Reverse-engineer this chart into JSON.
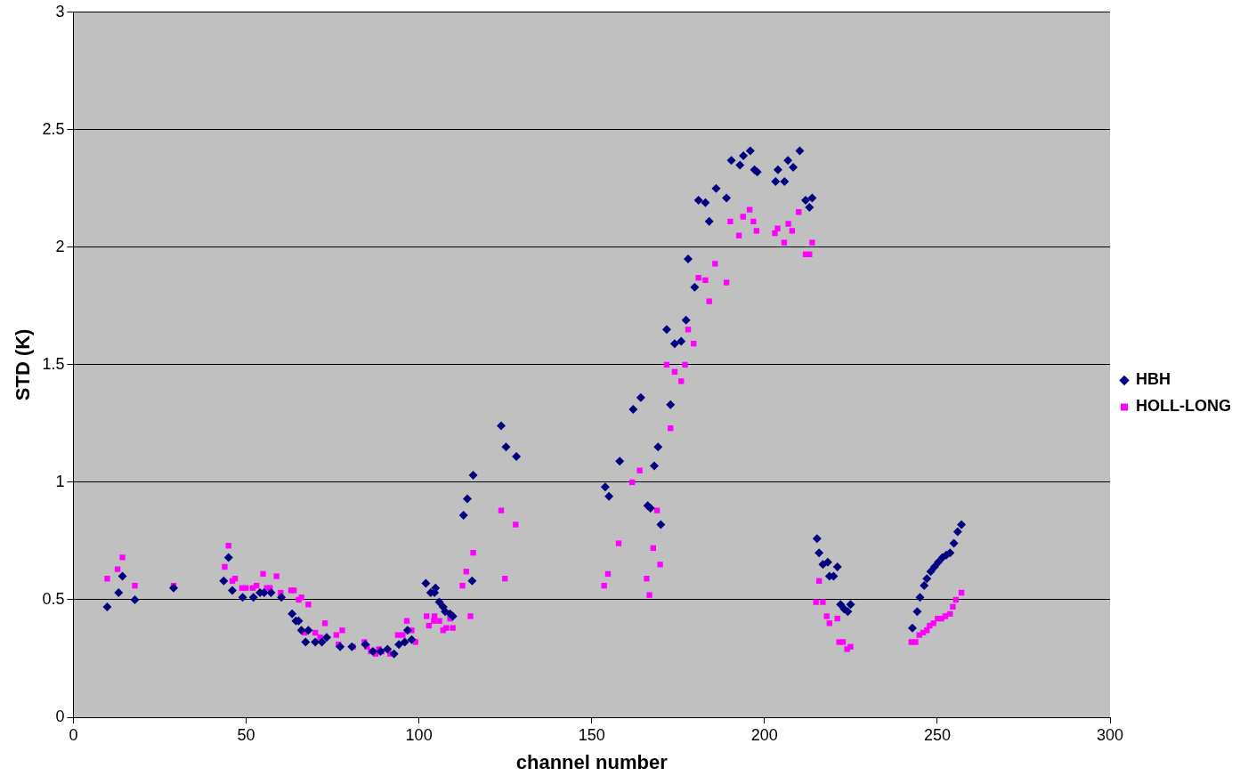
{
  "chart_data": {
    "type": "scatter",
    "xlabel": "channel number",
    "ylabel": "STD (K)",
    "xlim": [
      0,
      300
    ],
    "xticks": [
      0,
      50,
      100,
      150,
      200,
      250,
      300
    ],
    "ylim": [
      0,
      3
    ],
    "yticks": [
      0,
      0.5,
      1,
      1.5,
      2,
      2.5,
      3
    ],
    "grid": "y",
    "legend": "right",
    "series": [
      {
        "name": "HBH",
        "color": "#000080",
        "marker": "diamond",
        "x": [
          9.8,
          13.1,
          14.2,
          17.8,
          29,
          43.5,
          44.9,
          46,
          49,
          52.1,
          54,
          55.2,
          57.2,
          60.2,
          63.3,
          64.4,
          65.2,
          66,
          67.2,
          68,
          70,
          71.9,
          73.3,
          77.2,
          80.6,
          84.5,
          86.7,
          88.9,
          90.9,
          92.8,
          94.2,
          95.9,
          96.7,
          97.9,
          102,
          103.4,
          104.5,
          104.8,
          105.9,
          107,
          107.6,
          109,
          109.8,
          112.9,
          114,
          115.4,
          115.7,
          123.8,
          125.2,
          128.2,
          153.9,
          155,
          158.1,
          162,
          164.2,
          166.2,
          167,
          168.1,
          169.2,
          170,
          172.8,
          171.7,
          174,
          175.9,
          177.3,
          177.9,
          179.8,
          180.9,
          182.9,
          184,
          186,
          189,
          190.4,
          192.9,
          193.9,
          195.9,
          197.1,
          197.9,
          203.2,
          203.9,
          205.8,
          206.8,
          208.3,
          210.2,
          211.9,
          213,
          213.8,
          215.2,
          215.8,
          216.9,
          218.3,
          218.8,
          220,
          221.1,
          222,
          223.1,
          224.1,
          224.9,
          242.8,
          244.2,
          245,
          246.2,
          247,
          248.1,
          249.2,
          250.3,
          251.5,
          252.6,
          253.7,
          254.8,
          255.9,
          257
        ],
        "values": [
          0.47,
          0.53,
          0.6,
          0.5,
          0.55,
          0.58,
          0.68,
          0.54,
          0.51,
          0.51,
          0.53,
          0.53,
          0.53,
          0.51,
          0.44,
          0.41,
          0.41,
          0.37,
          0.32,
          0.37,
          0.32,
          0.32,
          0.34,
          0.3,
          0.3,
          0.31,
          0.28,
          0.28,
          0.29,
          0.27,
          0.31,
          0.32,
          0.37,
          0.33,
          0.57,
          0.53,
          0.53,
          0.55,
          0.49,
          0.47,
          0.45,
          0.44,
          0.43,
          0.86,
          0.93,
          0.58,
          1.03,
          1.24,
          1.15,
          1.11,
          0.98,
          0.94,
          1.09,
          1.31,
          1.36,
          0.9,
          0.89,
          1.07,
          1.15,
          0.82,
          1.33,
          1.65,
          1.59,
          1.6,
          1.69,
          1.95,
          1.83,
          2.2,
          2.19,
          2.11,
          2.25,
          2.21,
          2.37,
          2.35,
          2.39,
          2.41,
          2.33,
          2.32,
          2.28,
          2.33,
          2.28,
          2.37,
          2.34,
          2.41,
          2.2,
          2.17,
          2.21,
          0.76,
          0.7,
          0.65,
          0.66,
          0.6,
          0.6,
          0.64,
          0.48,
          0.46,
          0.45,
          0.48,
          0.38,
          0.45,
          0.51,
          0.56,
          0.59,
          0.62,
          0.64,
          0.66,
          0.68,
          0.69,
          0.7,
          0.74,
          0.79,
          0.82
        ]
      },
      {
        "name": "HOLL-LONG",
        "color": "#ff00ff",
        "marker": "square",
        "x": [
          9.8,
          12.8,
          14.2,
          17.8,
          29,
          43.8,
          44.9,
          46,
          46.8,
          48.8,
          49.9,
          51.9,
          53,
          54.9,
          56,
          56.9,
          58.8,
          60,
          63,
          63.8,
          65.2,
          66,
          68,
          66.9,
          70,
          71.4,
          72.8,
          76.1,
          76.7,
          77.8,
          80.9,
          84.2,
          85,
          86.1,
          87.5,
          88.4,
          89.2,
          91.7,
          93.9,
          95.3,
          96.5,
          97.9,
          99,
          102.2,
          102.9,
          104.3,
          104.5,
          105.9,
          107,
          107.9,
          109,
          109.8,
          112.6,
          113.7,
          115.7,
          114.9,
          123.8,
          128,
          124.9,
          153.6,
          154.7,
          157.8,
          161.7,
          163.9,
          165.9,
          166.7,
          167.8,
          168.9,
          169.8,
          171.7,
          172.8,
          174,
          175.9,
          177,
          177.9,
          179.5,
          180.9,
          182.9,
          184,
          185.7,
          189,
          190.1,
          192.6,
          193.8,
          195.7,
          196.8,
          197.7,
          203,
          203.8,
          205.7,
          206.9,
          208,
          209.9,
          211.9,
          213,
          213.8,
          214.9,
          215.8,
          216.9,
          218,
          218.8,
          221.1,
          221.6,
          222.7,
          223.9,
          224.9,
          242.5,
          243.7,
          244.8,
          245.9,
          247,
          247.8,
          248.9,
          250.1,
          251.2,
          252.3,
          253.7,
          254.5,
          255.4,
          257
        ],
        "values": [
          0.59,
          0.63,
          0.68,
          0.56,
          0.56,
          0.64,
          0.73,
          0.58,
          0.59,
          0.55,
          0.55,
          0.55,
          0.56,
          0.61,
          0.55,
          0.55,
          0.6,
          0.53,
          0.54,
          0.54,
          0.5,
          0.51,
          0.48,
          0.36,
          0.36,
          0.34,
          0.4,
          0.35,
          0.31,
          0.37,
          0.3,
          0.32,
          0.3,
          0.28,
          0.27,
          0.29,
          0.28,
          0.27,
          0.35,
          0.35,
          0.41,
          0.37,
          0.32,
          0.43,
          0.39,
          0.41,
          0.43,
          0.41,
          0.37,
          0.38,
          0.42,
          0.38,
          0.56,
          0.62,
          0.7,
          0.43,
          0.88,
          0.82,
          0.59,
          0.56,
          0.61,
          0.74,
          1.0,
          1.05,
          0.59,
          0.52,
          0.72,
          0.88,
          0.65,
          1.5,
          1.23,
          1.47,
          1.43,
          1.5,
          1.65,
          1.59,
          1.87,
          1.86,
          1.77,
          1.93,
          1.85,
          2.11,
          2.05,
          2.13,
          2.16,
          2.11,
          2.07,
          2.06,
          2.08,
          2.02,
          2.1,
          2.07,
          2.15,
          1.97,
          1.97,
          2.02,
          0.49,
          0.58,
          0.49,
          0.43,
          0.4,
          0.42,
          0.32,
          0.32,
          0.29,
          0.3,
          0.32,
          0.32,
          0.35,
          0.36,
          0.37,
          0.39,
          0.4,
          0.42,
          0.42,
          0.43,
          0.44,
          0.47,
          0.5,
          0.53
        ]
      }
    ]
  }
}
